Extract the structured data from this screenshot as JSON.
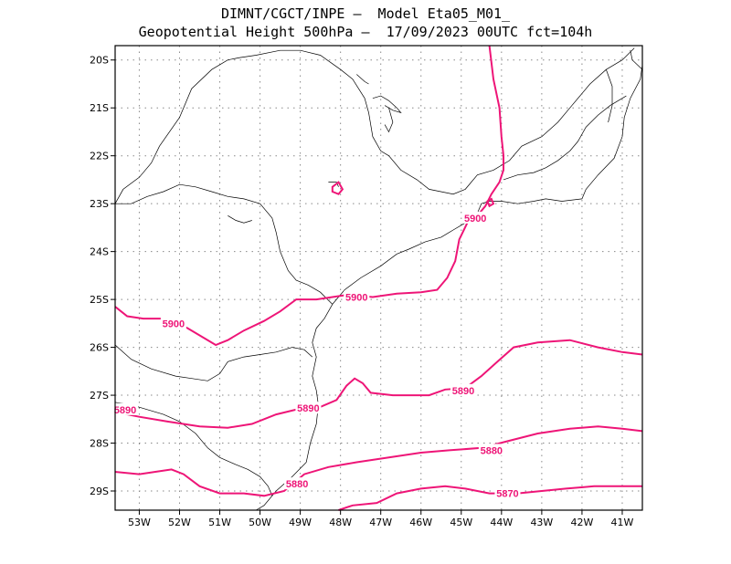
{
  "title": {
    "line1": "DIMNT/CGCT/INPE –  Model Eta05_M01_",
    "line2": "Geopotential Height 500hPa –  17/09/2023 00UTC fct=104h"
  },
  "colors": {
    "contour": "#ee1577",
    "coast": "#000000",
    "grid": "#888888"
  },
  "axes": {
    "lon_range": [
      -53.6,
      -40.5
    ],
    "lat_range": [
      -29.4,
      -19.7
    ],
    "lat_labels": [
      {
        "v": -20,
        "t": "20S"
      },
      {
        "v": -21,
        "t": "21S"
      },
      {
        "v": -22,
        "t": "22S"
      },
      {
        "v": -23,
        "t": "23S"
      },
      {
        "v": -24,
        "t": "24S"
      },
      {
        "v": -25,
        "t": "25S"
      },
      {
        "v": -26,
        "t": "26S"
      },
      {
        "v": -27,
        "t": "27S"
      },
      {
        "v": -28,
        "t": "28S"
      },
      {
        "v": -29,
        "t": "29S"
      }
    ],
    "lon_labels": [
      {
        "v": -53,
        "t": "53W"
      },
      {
        "v": -52,
        "t": "52W"
      },
      {
        "v": -51,
        "t": "51W"
      },
      {
        "v": -50,
        "t": "50W"
      },
      {
        "v": -49,
        "t": "49W"
      },
      {
        "v": -48,
        "t": "48W"
      },
      {
        "v": -47,
        "t": "47W"
      },
      {
        "v": -46,
        "t": "46W"
      },
      {
        "v": -45,
        "t": "45W"
      },
      {
        "v": -44,
        "t": "44W"
      },
      {
        "v": -43,
        "t": "43W"
      },
      {
        "v": -42,
        "t": "42W"
      },
      {
        "v": -41,
        "t": "41W"
      }
    ]
  },
  "contour_labels": [
    {
      "t": "5900",
      "lon": -52.15,
      "lat": -25.5
    },
    {
      "t": "5900",
      "lon": -47.6,
      "lat": -24.95
    },
    {
      "t": "5900",
      "lon": -44.65,
      "lat": -23.3
    },
    {
      "t": "5890",
      "lon": -53.35,
      "lat": -27.3
    },
    {
      "t": "5890",
      "lon": -48.8,
      "lat": -27.27
    },
    {
      "t": "5890",
      "lon": -44.95,
      "lat": -26.9
    },
    {
      "t": "5880",
      "lon": -49.08,
      "lat": -28.85
    },
    {
      "t": "5880",
      "lon": -44.25,
      "lat": -28.15
    },
    {
      "t": "5870",
      "lon": -43.85,
      "lat": -29.05
    }
  ],
  "contours": [
    {
      "value": 5900,
      "points": [
        [
          -53.6,
          -25.15
        ],
        [
          -53.3,
          -25.35
        ],
        [
          -52.9,
          -25.4
        ],
        [
          -52.3,
          -25.4
        ],
        [
          -51.8,
          -25.6
        ],
        [
          -51.4,
          -25.8
        ],
        [
          -51.1,
          -25.95
        ],
        [
          -50.8,
          -25.85
        ],
        [
          -50.4,
          -25.65
        ],
        [
          -49.9,
          -25.45
        ],
        [
          -49.5,
          -25.25
        ],
        [
          -49.1,
          -25.0
        ],
        [
          -48.6,
          -25.0
        ],
        [
          -48.2,
          -24.95
        ],
        [
          -47.8,
          -24.9
        ],
        [
          -47.2,
          -24.95
        ],
        [
          -46.6,
          -24.88
        ],
        [
          -46.0,
          -24.85
        ],
        [
          -45.6,
          -24.8
        ],
        [
          -45.35,
          -24.55
        ],
        [
          -45.15,
          -24.2
        ],
        [
          -45.05,
          -23.75
        ],
        [
          -44.85,
          -23.4
        ],
        [
          -44.6,
          -23.25
        ],
        [
          -44.4,
          -23.05
        ],
        [
          -44.25,
          -22.8
        ],
        [
          -44.05,
          -22.55
        ],
        [
          -43.95,
          -22.3
        ],
        [
          -43.95,
          -22.0
        ],
        [
          -44.0,
          -21.6
        ],
        [
          -44.05,
          -21.0
        ],
        [
          -44.2,
          -20.4
        ],
        [
          -44.3,
          -19.7
        ]
      ]
    },
    {
      "value": 5890,
      "points": [
        [
          -53.6,
          -27.35
        ],
        [
          -53.0,
          -27.45
        ],
        [
          -52.3,
          -27.55
        ],
        [
          -51.5,
          -27.65
        ],
        [
          -50.8,
          -27.68
        ],
        [
          -50.2,
          -27.6
        ],
        [
          -49.6,
          -27.4
        ],
        [
          -49.1,
          -27.3
        ],
        [
          -48.6,
          -27.28
        ],
        [
          -48.1,
          -27.1
        ],
        [
          -47.85,
          -26.8
        ],
        [
          -47.65,
          -26.65
        ],
        [
          -47.45,
          -26.75
        ],
        [
          -47.25,
          -26.95
        ],
        [
          -46.7,
          -27.0
        ],
        [
          -46.2,
          -27.0
        ],
        [
          -45.8,
          -27.0
        ],
        [
          -45.4,
          -26.88
        ],
        [
          -44.9,
          -26.85
        ],
        [
          -44.5,
          -26.6
        ],
        [
          -44.1,
          -26.3
        ],
        [
          -43.7,
          -26.0
        ],
        [
          -43.1,
          -25.9
        ],
        [
          -42.3,
          -25.85
        ],
        [
          -41.6,
          -26.0
        ],
        [
          -41.0,
          -26.1
        ],
        [
          -40.5,
          -26.15
        ]
      ]
    },
    {
      "value": 5880,
      "points": [
        [
          -53.6,
          -28.6
        ],
        [
          -53.0,
          -28.65
        ],
        [
          -52.6,
          -28.6
        ],
        [
          -52.2,
          -28.55
        ],
        [
          -51.9,
          -28.65
        ],
        [
          -51.5,
          -28.9
        ],
        [
          -51.0,
          -29.05
        ],
        [
          -50.4,
          -29.05
        ],
        [
          -49.9,
          -29.1
        ],
        [
          -49.4,
          -29.0
        ],
        [
          -48.9,
          -28.65
        ],
        [
          -48.3,
          -28.5
        ],
        [
          -47.6,
          -28.4
        ],
        [
          -46.8,
          -28.3
        ],
        [
          -46.0,
          -28.2
        ],
        [
          -45.3,
          -28.15
        ],
        [
          -44.5,
          -28.1
        ],
        [
          -43.8,
          -27.95
        ],
        [
          -43.1,
          -27.8
        ],
        [
          -42.3,
          -27.7
        ],
        [
          -41.6,
          -27.65
        ],
        [
          -41.0,
          -27.7
        ],
        [
          -40.5,
          -27.75
        ]
      ]
    },
    {
      "value": 5870,
      "points": [
        [
          -48.05,
          -29.4
        ],
        [
          -47.7,
          -29.3
        ],
        [
          -47.1,
          -29.25
        ],
        [
          -46.6,
          -29.05
        ],
        [
          -46.0,
          -28.95
        ],
        [
          -45.4,
          -28.9
        ],
        [
          -44.9,
          -28.95
        ],
        [
          -44.3,
          -29.05
        ],
        [
          -43.6,
          -29.05
        ],
        [
          -43.0,
          -29.0
        ],
        [
          -42.4,
          -28.95
        ],
        [
          -41.7,
          -28.9
        ],
        [
          -41.0,
          -28.9
        ],
        [
          -40.5,
          -28.9
        ]
      ]
    }
  ],
  "closed_contours": [
    {
      "value": 5900,
      "points": [
        [
          -48.2,
          -22.65
        ],
        [
          -48.05,
          -22.55
        ],
        [
          -47.95,
          -22.7
        ],
        [
          -48.05,
          -22.8
        ],
        [
          -48.2,
          -22.75
        ]
      ]
    },
    {
      "value": 5900,
      "points": [
        [
          -44.35,
          -22.95
        ],
        [
          -44.25,
          -22.9
        ],
        [
          -44.2,
          -23.0
        ],
        [
          -44.3,
          -23.05
        ]
      ]
    }
  ],
  "coastlines": [
    [
      [
        -53.6,
        -23.0
      ],
      [
        -53.4,
        -22.7
      ],
      [
        -53.0,
        -22.45
      ],
      [
        -52.7,
        -22.15
      ],
      [
        -52.5,
        -21.8
      ],
      [
        -52.0,
        -21.2
      ],
      [
        -51.7,
        -20.6
      ],
      [
        -51.2,
        -20.2
      ],
      [
        -50.8,
        -20.0
      ],
      [
        -50.5,
        -19.95
      ],
      [
        -50.1,
        -19.9
      ],
      [
        -49.5,
        -19.8
      ],
      [
        -49.0,
        -19.8
      ],
      [
        -48.5,
        -19.9
      ],
      [
        -48.0,
        -20.2
      ],
      [
        -47.7,
        -20.4
      ],
      [
        -47.4,
        -20.8
      ],
      [
        -47.3,
        -21.1
      ],
      [
        -47.2,
        -21.6
      ],
      [
        -47.0,
        -21.9
      ],
      [
        -46.8,
        -22.0
      ],
      [
        -46.5,
        -22.3
      ],
      [
        -46.1,
        -22.5
      ],
      [
        -45.8,
        -22.7
      ],
      [
        -45.2,
        -22.8
      ],
      [
        -44.9,
        -22.7
      ],
      [
        -44.6,
        -22.4
      ],
      [
        -44.2,
        -22.3
      ],
      [
        -43.8,
        -22.1
      ],
      [
        -43.5,
        -21.8
      ],
      [
        -43.0,
        -21.6
      ],
      [
        -42.6,
        -21.3
      ],
      [
        -42.3,
        -21.0
      ],
      [
        -41.8,
        -20.5
      ],
      [
        -41.4,
        -20.2
      ],
      [
        -41.0,
        -20.0
      ],
      [
        -40.7,
        -19.75
      ]
    ],
    [
      [
        -53.6,
        -23.0
      ],
      [
        -53.2,
        -23.0
      ],
      [
        -52.8,
        -22.85
      ],
      [
        -52.4,
        -22.75
      ],
      [
        -52.0,
        -22.6
      ],
      [
        -51.6,
        -22.65
      ],
      [
        -51.2,
        -22.75
      ],
      [
        -50.8,
        -22.85
      ],
      [
        -50.4,
        -22.9
      ],
      [
        -50.0,
        -23.0
      ],
      [
        -49.7,
        -23.3
      ],
      [
        -49.6,
        -23.6
      ],
      [
        -49.5,
        -24.0
      ],
      [
        -49.3,
        -24.4
      ],
      [
        -49.1,
        -24.6
      ],
      [
        -48.8,
        -24.7
      ],
      [
        -48.5,
        -24.85
      ],
      [
        -48.2,
        -25.1
      ]
    ],
    [
      [
        -48.2,
        -25.1
      ],
      [
        -47.9,
        -24.8
      ],
      [
        -47.5,
        -24.55
      ],
      [
        -47.0,
        -24.3
      ],
      [
        -46.6,
        -24.05
      ],
      [
        -46.3,
        -23.95
      ],
      [
        -45.9,
        -23.8
      ],
      [
        -45.5,
        -23.7
      ],
      [
        -45.2,
        -23.55
      ],
      [
        -44.9,
        -23.4
      ],
      [
        -44.6,
        -23.2
      ],
      [
        -44.5,
        -23.0
      ],
      [
        -44.3,
        -22.95
      ],
      [
        -44.0,
        -22.95
      ],
      [
        -43.6,
        -23.0
      ],
      [
        -43.2,
        -22.95
      ],
      [
        -42.9,
        -22.9
      ],
      [
        -42.5,
        -22.95
      ],
      [
        -42.0,
        -22.9
      ],
      [
        -41.9,
        -22.7
      ],
      [
        -41.6,
        -22.4
      ],
      [
        -41.2,
        -22.05
      ],
      [
        -41.0,
        -21.6
      ],
      [
        -40.95,
        -21.2
      ],
      [
        -40.8,
        -20.8
      ],
      [
        -40.55,
        -20.4
      ],
      [
        -40.5,
        -20.1
      ]
    ],
    [
      [
        -48.2,
        -25.1
      ],
      [
        -48.4,
        -25.4
      ],
      [
        -48.6,
        -25.6
      ],
      [
        -48.7,
        -25.9
      ],
      [
        -48.6,
        -26.2
      ],
      [
        -48.7,
        -26.6
      ],
      [
        -48.6,
        -26.9
      ],
      [
        -48.55,
        -27.2
      ],
      [
        -48.6,
        -27.6
      ],
      [
        -48.75,
        -28.0
      ],
      [
        -48.85,
        -28.4
      ],
      [
        -49.2,
        -28.7
      ],
      [
        -49.6,
        -29.0
      ],
      [
        -49.9,
        -29.3
      ],
      [
        -50.1,
        -29.4
      ]
    ],
    [
      [
        -53.6,
        -25.95
      ],
      [
        -53.2,
        -26.25
      ],
      [
        -52.7,
        -26.45
      ],
      [
        -52.1,
        -26.6
      ],
      [
        -51.7,
        -26.65
      ],
      [
        -51.3,
        -26.7
      ],
      [
        -51.0,
        -26.55
      ],
      [
        -50.8,
        -26.3
      ],
      [
        -50.4,
        -26.2
      ],
      [
        -50.0,
        -26.15
      ],
      [
        -49.6,
        -26.1
      ],
      [
        -49.2,
        -26.0
      ],
      [
        -48.9,
        -26.05
      ],
      [
        -48.7,
        -26.2
      ]
    ],
    [
      [
        -53.6,
        -27.15
      ],
      [
        -53.2,
        -27.2
      ],
      [
        -52.8,
        -27.3
      ],
      [
        -52.4,
        -27.4
      ],
      [
        -52.0,
        -27.55
      ],
      [
        -51.6,
        -27.8
      ],
      [
        -51.3,
        -28.1
      ],
      [
        -51.0,
        -28.3
      ],
      [
        -50.6,
        -28.45
      ],
      [
        -50.3,
        -28.55
      ],
      [
        -50.0,
        -28.7
      ],
      [
        -49.8,
        -28.9
      ],
      [
        -49.7,
        -29.1
      ]
    ],
    [
      [
        -43.95,
        -22.5
      ],
      [
        -43.6,
        -22.4
      ],
      [
        -43.2,
        -22.35
      ],
      [
        -42.9,
        -22.25
      ],
      [
        -42.6,
        -22.1
      ],
      [
        -42.3,
        -21.9
      ],
      [
        -42.1,
        -21.7
      ],
      [
        -41.9,
        -21.4
      ],
      [
        -41.6,
        -21.15
      ],
      [
        -41.3,
        -20.95
      ],
      [
        -40.9,
        -20.75
      ]
    ],
    [
      [
        -41.4,
        -20.2
      ],
      [
        -41.25,
        -20.55
      ],
      [
        -41.25,
        -20.95
      ],
      [
        -41.35,
        -21.3
      ]
    ],
    [
      [
        -40.5,
        -20.2
      ],
      [
        -40.75,
        -20.0
      ],
      [
        -40.8,
        -19.8
      ]
    ]
  ],
  "lakes": [
    [
      [
        -47.2,
        -20.8
      ],
      [
        -47.0,
        -20.75
      ],
      [
        -46.8,
        -20.85
      ],
      [
        -46.6,
        -21.0
      ],
      [
        -46.5,
        -21.1
      ],
      [
        -46.7,
        -21.05
      ],
      [
        -46.9,
        -20.95
      ]
    ],
    [
      [
        -46.8,
        -21.0
      ],
      [
        -46.7,
        -21.3
      ],
      [
        -46.8,
        -21.5
      ],
      [
        -46.9,
        -21.35
      ]
    ],
    [
      [
        -48.3,
        -22.55
      ],
      [
        -48.1,
        -22.55
      ],
      [
        -48.05,
        -22.65
      ]
    ],
    [
      [
        -50.8,
        -23.25
      ],
      [
        -50.6,
        -23.35
      ],
      [
        -50.4,
        -23.4
      ],
      [
        -50.2,
        -23.35
      ]
    ],
    [
      [
        -47.6,
        -20.3
      ],
      [
        -47.4,
        -20.45
      ],
      [
        -47.3,
        -20.5
      ]
    ]
  ]
}
